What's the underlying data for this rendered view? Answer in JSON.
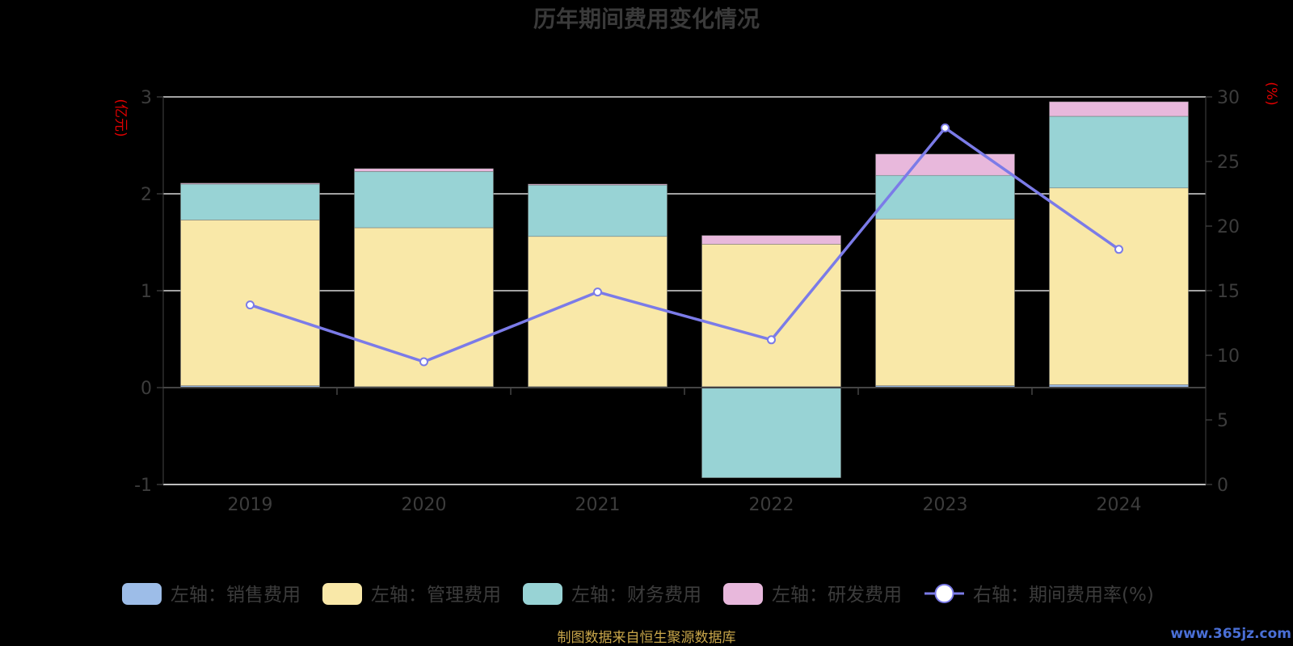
{
  "chart_data": {
    "type": "bar",
    "stacked": true,
    "title": "历年期间费用变化情况",
    "categories": [
      "2019",
      "2020",
      "2021",
      "2022",
      "2023",
      "2024"
    ],
    "left_axis": {
      "unit": "(亿元)",
      "ylim": [
        -1,
        3
      ],
      "ticks": [
        "-1",
        "0",
        "1",
        "2",
        "3"
      ]
    },
    "right_axis": {
      "unit": "(%)",
      "ylim": [
        0,
        30
      ],
      "ticks": [
        "0",
        "5",
        "10",
        "15",
        "20",
        "25",
        "30"
      ]
    },
    "grid": true,
    "legend_position": "bottom",
    "series": [
      {
        "name": "左轴：销售费用",
        "type": "bar",
        "axis": "left",
        "color": "#9dbde8",
        "values": [
          0.02,
          0.01,
          0.01,
          0.01,
          0.02,
          0.03
        ]
      },
      {
        "name": "左轴：管理费用",
        "type": "bar",
        "axis": "left",
        "color": "#f9e8a8",
        "values": [
          1.71,
          1.64,
          1.55,
          1.47,
          1.72,
          2.03
        ]
      },
      {
        "name": "左轴：财务费用",
        "type": "bar",
        "axis": "left",
        "color": "#98d3d5",
        "values": [
          0.37,
          0.58,
          0.53,
          -0.93,
          0.45,
          0.74
        ]
      },
      {
        "name": "左轴：研发费用",
        "type": "bar",
        "axis": "left",
        "color": "#e8b8dc",
        "values": [
          0.01,
          0.03,
          0.01,
          0.09,
          0.22,
          0.15
        ]
      },
      {
        "name": "右轴：期间费用率(%)",
        "type": "line",
        "axis": "right",
        "color": "#7b7be8",
        "values": [
          13.9,
          9.5,
          14.9,
          11.2,
          27.6,
          18.2
        ]
      }
    ]
  },
  "footer": {
    "source": "制图数据来自恒生聚源数据库",
    "watermark": "www.365jz.com"
  }
}
